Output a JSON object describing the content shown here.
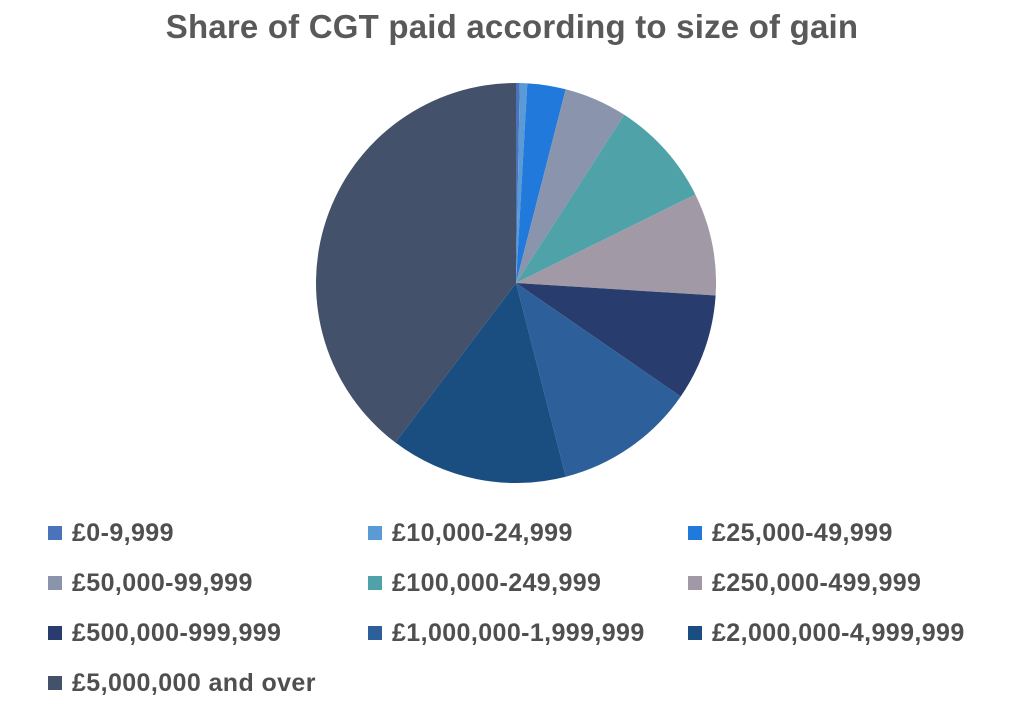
{
  "title": "Share of CGT paid according to size of gain",
  "colors": {
    "background": "#ffffff",
    "title_text": "#595959",
    "legend_text": "#4f4f4f"
  },
  "chart_data": {
    "type": "pie",
    "title": "Share of CGT paid according to size of gain",
    "legend_position": "bottom",
    "start_angle_deg": 0,
    "direction": "clockwise",
    "units": "percent",
    "slices": [
      {
        "label": "£0-9,999",
        "value": 0.3,
        "color": "#4a73bc"
      },
      {
        "label": "£10,000-24,999",
        "value": 0.6,
        "color": "#5b9bd5"
      },
      {
        "label": "£25,000-49,999",
        "value": 3.1,
        "color": "#2279dc"
      },
      {
        "label": "£50,000-99,999",
        "value": 5.1,
        "color": "#8b94ad"
      },
      {
        "label": "£100,000-249,999",
        "value": 8.6,
        "color": "#4ea2a8"
      },
      {
        "label": "£250,000-499,999",
        "value": 8.3,
        "color": "#a299a7"
      },
      {
        "label": "£500,000-999,999",
        "value": 8.6,
        "color": "#283d6e"
      },
      {
        "label": "£1,000,000-1,999,999",
        "value": 11.4,
        "color": "#2d5f9a"
      },
      {
        "label": "£2,000,000-4,999,999",
        "value": 14.3,
        "color": "#1a4d80"
      },
      {
        "label": "£5,000,000 and over",
        "value": 39.7,
        "color": "#43526a"
      }
    ]
  }
}
